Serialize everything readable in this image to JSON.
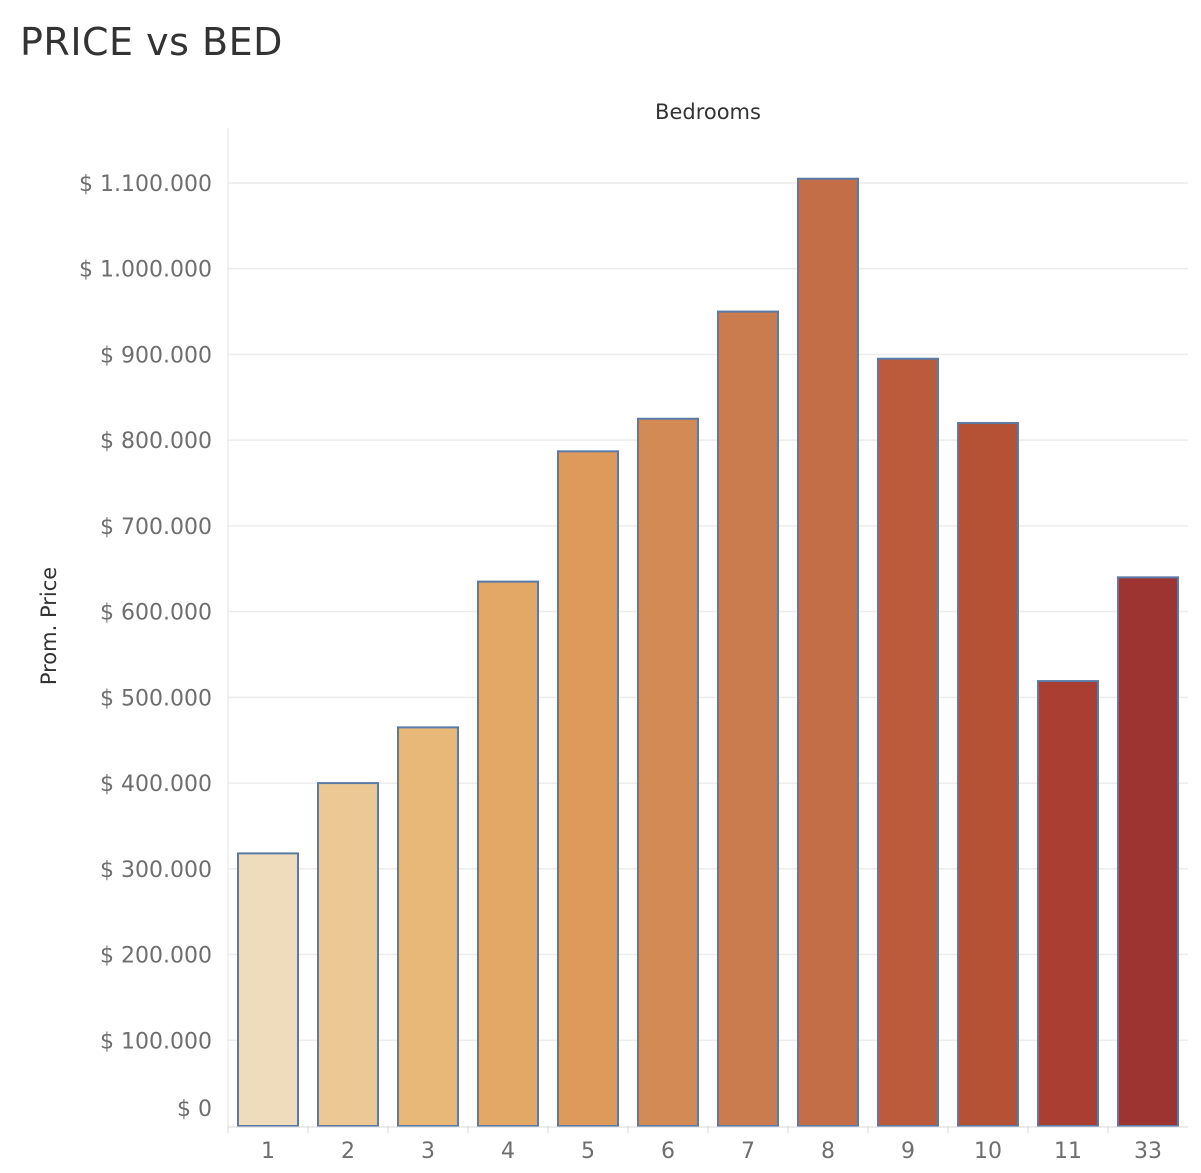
{
  "title": "PRICE vs BED",
  "chart_data": {
    "type": "bar",
    "title": "PRICE vs BED",
    "xlabel": "Bedrooms",
    "ylabel": "Prom. Price",
    "categories": [
      "1",
      "2",
      "3",
      "4",
      "5",
      "6",
      "7",
      "8",
      "9",
      "10",
      "11",
      "33"
    ],
    "values": [
      318000,
      400000,
      465000,
      635000,
      787000,
      825000,
      950000,
      1105000,
      895000,
      820000,
      519000,
      640000
    ],
    "bar_colors": [
      "#eedcbd",
      "#ebc894",
      "#e8b879",
      "#e4a866",
      "#dd9a5a",
      "#d38a55",
      "#ca7c4e",
      "#c36e47",
      "#bb5b3c",
      "#b55235",
      "#ab3e32",
      "#9d3432"
    ],
    "bar_outline_color": "#5b7aa6",
    "ylim": [
      0,
      1150000
    ],
    "y_ticks": [
      0,
      100000,
      200000,
      300000,
      400000,
      500000,
      600000,
      700000,
      800000,
      900000,
      1000000,
      1100000
    ],
    "y_tick_labels": [
      "$ 0",
      "$ 100.000",
      "$ 200.000",
      "$ 300.000",
      "$ 400.000",
      "$ 500.000",
      "$ 600.000",
      "$ 700.000",
      "$ 800.000",
      "$ 900.000",
      "$ 1.000.000",
      "$ 1.100.000"
    ],
    "xlabel_position": "top",
    "grid": true,
    "legend": false
  }
}
